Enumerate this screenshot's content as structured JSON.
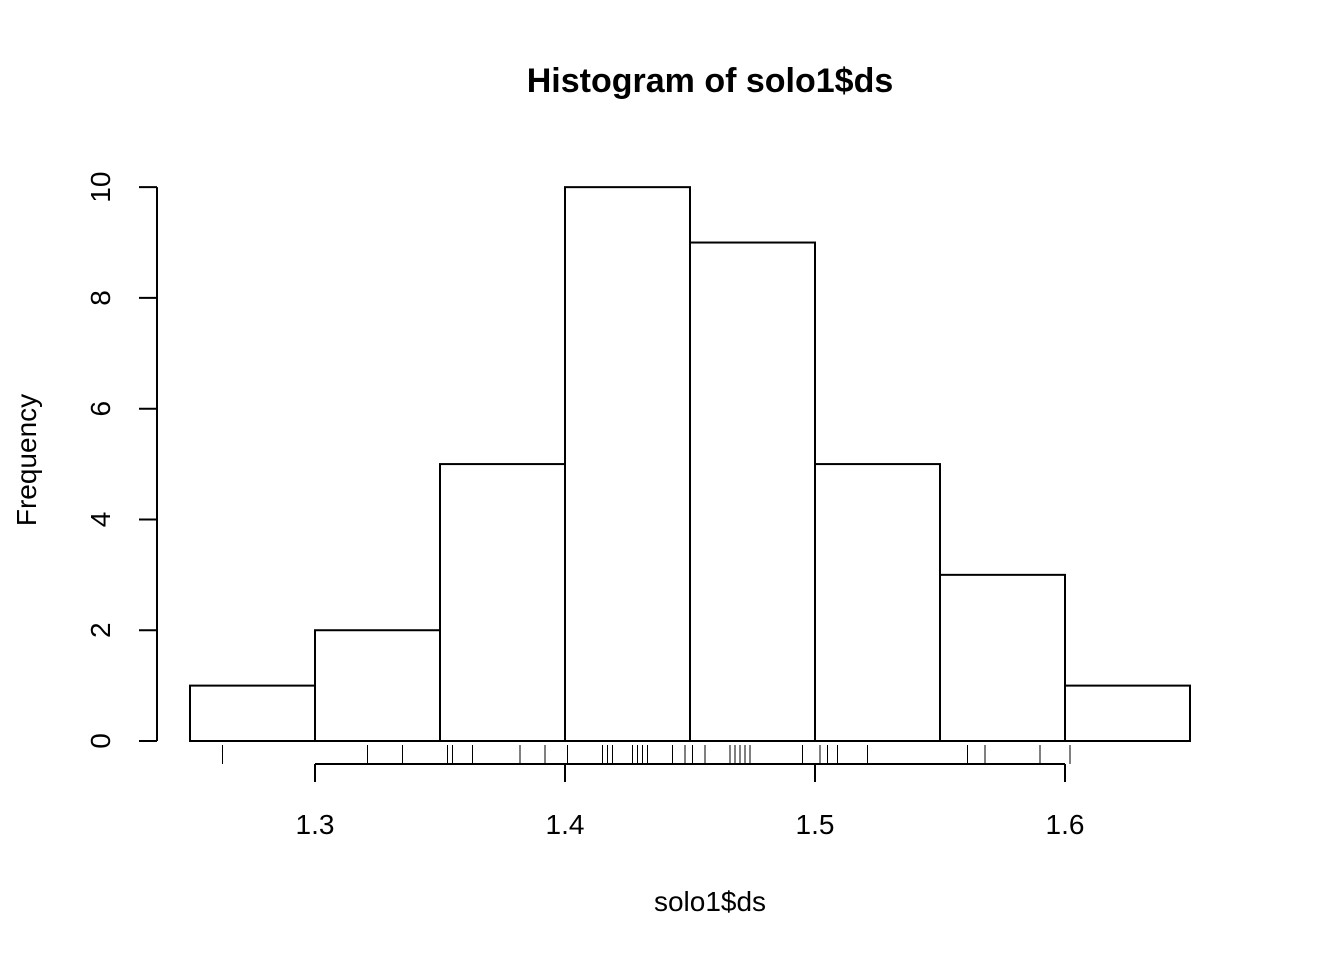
{
  "chart_data": {
    "type": "bar",
    "title": "Histogram of solo1$ds",
    "xlabel": "solo1$ds",
    "ylabel": "Frequency",
    "bins": [
      {
        "x0": 1.25,
        "x1": 1.3,
        "count": 1
      },
      {
        "x0": 1.3,
        "x1": 1.35,
        "count": 2
      },
      {
        "x0": 1.35,
        "x1": 1.4,
        "count": 5
      },
      {
        "x0": 1.4,
        "x1": 1.45,
        "count": 10
      },
      {
        "x0": 1.45,
        "x1": 1.5,
        "count": 9
      },
      {
        "x0": 1.5,
        "x1": 1.55,
        "count": 5
      },
      {
        "x0": 1.55,
        "x1": 1.6,
        "count": 3
      },
      {
        "x0": 1.6,
        "x1": 1.65,
        "count": 1
      }
    ],
    "x_ticks": [
      1.3,
      1.4,
      1.5,
      1.6
    ],
    "x_tick_labels": [
      "1.3",
      "1.4",
      "1.5",
      "1.6"
    ],
    "y_ticks": [
      0,
      2,
      4,
      6,
      8,
      10
    ],
    "y_tick_labels": [
      "0",
      "2",
      "4",
      "6",
      "8",
      "10"
    ],
    "xlim": [
      1.234,
      1.666
    ],
    "ylim": [
      0,
      10.4
    ],
    "rug": [
      1.263,
      1.321,
      1.335,
      1.353,
      1.355,
      1.363,
      1.382,
      1.392,
      1.401,
      1.415,
      1.417,
      1.419,
      1.427,
      1.429,
      1.431,
      1.433,
      1.443,
      1.448,
      1.451,
      1.456,
      1.466,
      1.468,
      1.47,
      1.472,
      1.474,
      1.495,
      1.502,
      1.505,
      1.509,
      1.521,
      1.561,
      1.568,
      1.59,
      1.602
    ],
    "grid": false,
    "legend": "none"
  }
}
